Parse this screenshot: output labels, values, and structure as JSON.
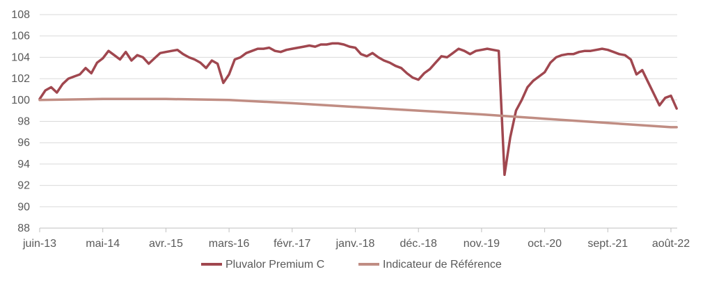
{
  "chart_data": {
    "type": "line",
    "title": "",
    "xlabel": "",
    "ylabel": "",
    "ylim": [
      88,
      108
    ],
    "yticks": [
      88,
      90,
      92,
      94,
      96,
      98,
      100,
      102,
      104,
      106,
      108
    ],
    "xticks": [
      "juin-13",
      "mai-14",
      "avr.-15",
      "mars-16",
      "févr.-17",
      "janv.-18",
      "déc.-18",
      "nov.-19",
      "oct.-20",
      "sept.-21",
      "août-22"
    ],
    "grid": "horizontal",
    "legend_position": "bottom",
    "series": [
      {
        "name": "Pluvalor Premium C",
        "color": "#A0474F",
        "points": [
          [
            "juin-13",
            100.1
          ],
          [
            "juil.-13",
            100.9
          ],
          [
            "août-13",
            101.2
          ],
          [
            "sept.-13",
            100.7
          ],
          [
            "oct.-13",
            101.5
          ],
          [
            "nov.-13",
            102.0
          ],
          [
            "déc.-13",
            102.2
          ],
          [
            "janv.-14",
            102.4
          ],
          [
            "févr.-14",
            103.0
          ],
          [
            "mars-14",
            102.5
          ],
          [
            "avr.-14",
            103.5
          ],
          [
            "mai-14",
            103.9
          ],
          [
            "juin-14",
            104.6
          ],
          [
            "juil.-14",
            104.2
          ],
          [
            "août-14",
            103.8
          ],
          [
            "sept.-14",
            104.5
          ],
          [
            "oct.-14",
            103.7
          ],
          [
            "nov.-14",
            104.2
          ],
          [
            "déc.-14",
            104.0
          ],
          [
            "janv.-15",
            103.4
          ],
          [
            "févr.-15",
            103.9
          ],
          [
            "mars-15",
            104.4
          ],
          [
            "avr.-15",
            104.5
          ],
          [
            "mai-15",
            104.6
          ],
          [
            "juin-15",
            104.7
          ],
          [
            "juil.-15",
            104.3
          ],
          [
            "août-15",
            104.0
          ],
          [
            "sept.-15",
            103.8
          ],
          [
            "oct.-15",
            103.5
          ],
          [
            "nov.-15",
            103.0
          ],
          [
            "déc.-15",
            103.7
          ],
          [
            "janv.-16",
            103.4
          ],
          [
            "févr.-16",
            101.6
          ],
          [
            "mars-16",
            102.4
          ],
          [
            "avr.-16",
            103.8
          ],
          [
            "mai-16",
            104.0
          ],
          [
            "juin-16",
            104.4
          ],
          [
            "juil.-16",
            104.6
          ],
          [
            "août-16",
            104.8
          ],
          [
            "sept.-16",
            104.8
          ],
          [
            "oct.-16",
            104.9
          ],
          [
            "nov.-16",
            104.6
          ],
          [
            "déc.-16",
            104.5
          ],
          [
            "janv.-17",
            104.7
          ],
          [
            "févr.-17",
            104.8
          ],
          [
            "mars-17",
            104.9
          ],
          [
            "avr.-17",
            105.0
          ],
          [
            "mai-17",
            105.1
          ],
          [
            "juin-17",
            105.0
          ],
          [
            "juil.-17",
            105.2
          ],
          [
            "août-17",
            105.2
          ],
          [
            "sept.-17",
            105.3
          ],
          [
            "oct.-17",
            105.3
          ],
          [
            "nov.-17",
            105.2
          ],
          [
            "déc.-17",
            105.0
          ],
          [
            "janv.-18",
            104.9
          ],
          [
            "févr.-18",
            104.3
          ],
          [
            "mars-18",
            104.1
          ],
          [
            "avr.-18",
            104.4
          ],
          [
            "mai-18",
            104.0
          ],
          [
            "juin-18",
            103.7
          ],
          [
            "juil.-18",
            103.5
          ],
          [
            "août-18",
            103.2
          ],
          [
            "sept.-18",
            103.0
          ],
          [
            "oct.-18",
            102.5
          ],
          [
            "nov.-18",
            102.1
          ],
          [
            "déc.-18",
            101.9
          ],
          [
            "janv.-19",
            102.5
          ],
          [
            "févr.-19",
            102.9
          ],
          [
            "mars-19",
            103.5
          ],
          [
            "avr.-19",
            104.1
          ],
          [
            "mai-19",
            104.0
          ],
          [
            "juin-19",
            104.4
          ],
          [
            "juil.-19",
            104.8
          ],
          [
            "août-19",
            104.6
          ],
          [
            "sept.-19",
            104.3
          ],
          [
            "oct.-19",
            104.6
          ],
          [
            "nov.-19",
            104.7
          ],
          [
            "déc.-19",
            104.8
          ],
          [
            "janv.-20",
            104.7
          ],
          [
            "févr.-20",
            104.6
          ],
          [
            "mars-20",
            93.0
          ],
          [
            "avr.-20",
            96.5
          ],
          [
            "mai-20",
            99.0
          ],
          [
            "juin-20",
            100.0
          ],
          [
            "juil.-20",
            101.2
          ],
          [
            "août-20",
            101.8
          ],
          [
            "sept.-20",
            102.2
          ],
          [
            "oct.-20",
            102.6
          ],
          [
            "nov.-20",
            103.5
          ],
          [
            "déc.-20",
            104.0
          ],
          [
            "janv.-21",
            104.2
          ],
          [
            "févr.-21",
            104.3
          ],
          [
            "mars-21",
            104.3
          ],
          [
            "avr.-21",
            104.5
          ],
          [
            "mai-21",
            104.6
          ],
          [
            "juin-21",
            104.6
          ],
          [
            "juil.-21",
            104.7
          ],
          [
            "août-21",
            104.8
          ],
          [
            "sept.-21",
            104.7
          ],
          [
            "oct.-21",
            104.5
          ],
          [
            "nov.-21",
            104.3
          ],
          [
            "déc.-21",
            104.2
          ],
          [
            "janv.-22",
            103.8
          ],
          [
            "févr.-22",
            102.4
          ],
          [
            "mars-22",
            102.8
          ],
          [
            "avr.-22",
            101.7
          ],
          [
            "mai-22",
            100.6
          ],
          [
            "juin-22",
            99.5
          ],
          [
            "juil.-22",
            100.2
          ],
          [
            "août-22",
            100.4
          ],
          [
            "sept.-22",
            99.2
          ]
        ]
      },
      {
        "name": "Indicateur de Référence",
        "color": "#C08D83",
        "points": [
          [
            "juin-13",
            100.0
          ],
          [
            "mai-14",
            100.1
          ],
          [
            "avr.-15",
            100.1
          ],
          [
            "mars-16",
            100.0
          ],
          [
            "févr.-17",
            99.7
          ],
          [
            "janv.-18",
            99.35
          ],
          [
            "déc.-18",
            99.0
          ],
          [
            "nov.-19",
            98.65
          ],
          [
            "oct.-20",
            98.25
          ],
          [
            "sept.-21",
            97.85
          ],
          [
            "août-22",
            97.45
          ],
          [
            "sept.-22",
            97.45
          ]
        ]
      }
    ]
  }
}
